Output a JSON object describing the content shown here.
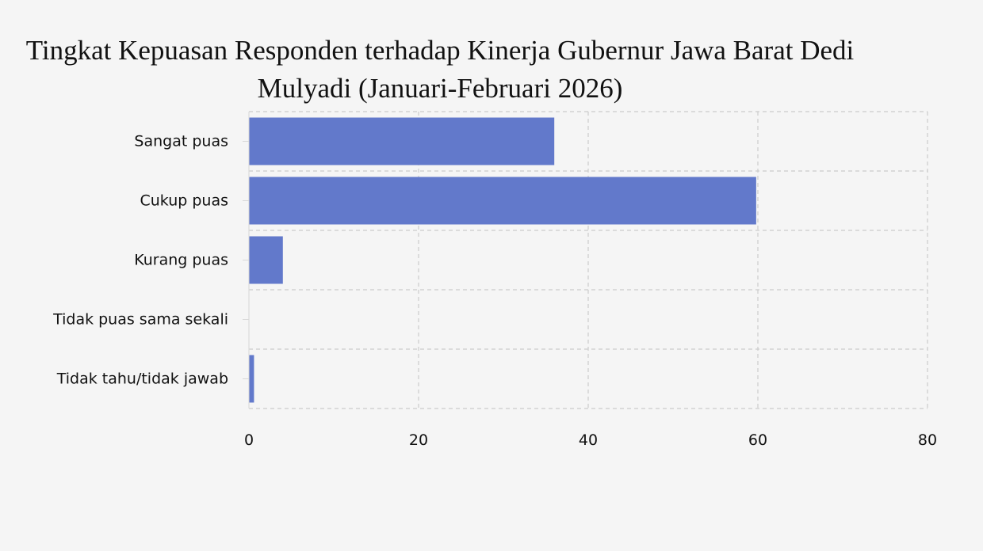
{
  "chart_data": {
    "type": "bar",
    "orientation": "horizontal",
    "title": "Tingkat Kepuasan Responden terhadap Kinerja Gubernur Jawa Barat Dedi Mulyadi (Januari-Februari 2026)",
    "categories": [
      "Sangat puas",
      "Cukup puas",
      "Kurang puas",
      "Tidak puas sama sekali",
      "Tidak tahu/tidak jawab"
    ],
    "values": [
      36,
      59.8,
      4,
      0,
      0.6
    ],
    "xlabel": "",
    "ylabel": "",
    "xlim": [
      0,
      80
    ],
    "xticks": [
      "0",
      "20",
      "40",
      "60",
      "80"
    ],
    "grid": true,
    "bar_color": "#6279cb",
    "background": "#f5f5f5"
  }
}
